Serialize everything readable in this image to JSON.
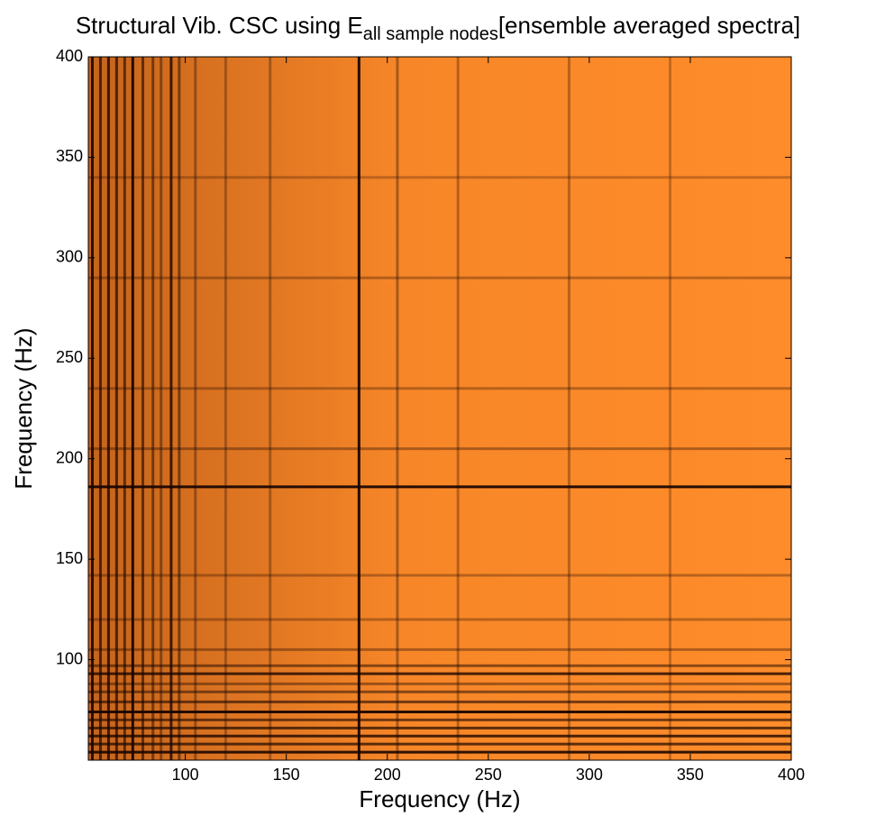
{
  "chart_data": {
    "type": "heatmap",
    "title": {
      "main": "Structural Vib. CSC using E",
      "subscript": "all sample nodes",
      "suffix": "[ensemble averaged spectra]"
    },
    "x_label": "Frequency (Hz)",
    "y_label": "Frequency (Hz)",
    "xlim": [
      52,
      400
    ],
    "ylim": [
      50,
      400
    ],
    "xticks": [
      100,
      150,
      200,
      250,
      300,
      350,
      400
    ],
    "yticks": [
      100,
      150,
      200,
      250,
      300,
      350,
      400
    ],
    "color_high": "#ff8c2a",
    "color_low": "#1a0500",
    "bands": {
      "frequency": [
        54,
        58,
        62,
        66,
        70,
        74,
        79,
        84,
        88,
        93,
        97,
        105,
        120,
        142,
        186,
        205,
        235,
        290,
        340
      ],
      "strength": [
        0.9,
        0.7,
        0.8,
        0.7,
        0.6,
        0.95,
        0.6,
        0.5,
        0.4,
        0.8,
        0.5,
        0.35,
        0.3,
        0.3,
        0.95,
        0.35,
        0.3,
        0.3,
        0.25
      ]
    }
  }
}
